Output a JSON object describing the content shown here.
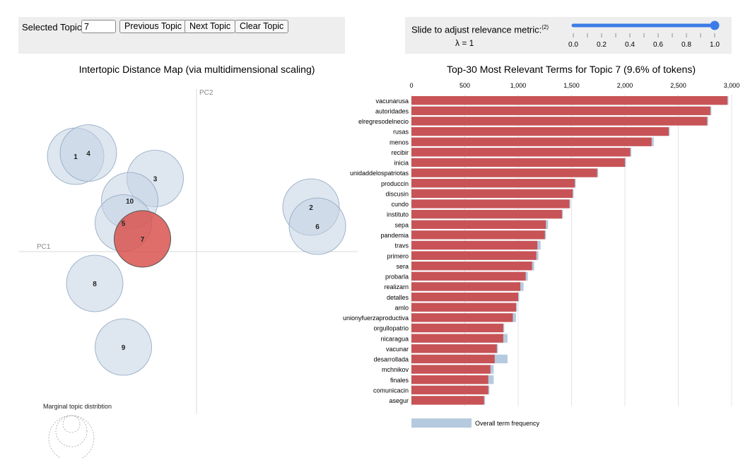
{
  "controls": {
    "selected_label": "Selected Topic:",
    "selected_value": "7",
    "prev_label": "Previous Topic",
    "next_label": "Next Topic",
    "clear_label": "Clear Topic",
    "relevance_label": "Slide to adjust relevance metric:",
    "relevance_sup": "(2)",
    "lambda_label": "λ = 1",
    "lambda_value": 1,
    "slider_ticks": [
      "0.0",
      "0.2",
      "0.4",
      "0.6",
      "0.8",
      "1.0"
    ],
    "slider_color": "#3d7ce6"
  },
  "chart_data": [
    {
      "type": "scatter",
      "title": "Intertopic Distance Map (via multidimensional scaling)",
      "xlabel": "PC1",
      "ylabel": "PC2",
      "colors": {
        "default": "#c3d2e3",
        "selected": "#d9534f"
      },
      "topics": [
        {
          "label": "1",
          "x": -0.38,
          "y": 0.3,
          "selected": false
        },
        {
          "label": "4",
          "x": -0.34,
          "y": 0.31,
          "selected": false
        },
        {
          "label": "3",
          "x": -0.13,
          "y": 0.23,
          "selected": false
        },
        {
          "label": "10",
          "x": -0.21,
          "y": 0.16,
          "selected": false
        },
        {
          "label": "5",
          "x": -0.23,
          "y": 0.09,
          "selected": false
        },
        {
          "label": "7",
          "x": -0.17,
          "y": 0.04,
          "selected": true
        },
        {
          "label": "2",
          "x": 0.36,
          "y": 0.14,
          "selected": false
        },
        {
          "label": "6",
          "x": 0.38,
          "y": 0.08,
          "selected": false
        },
        {
          "label": "8",
          "x": -0.32,
          "y": -0.1,
          "selected": false
        },
        {
          "label": "9",
          "x": -0.23,
          "y": -0.3,
          "selected": false
        }
      ],
      "legend_label": "Marginal topic distribtion"
    },
    {
      "type": "bar",
      "title": "Top-30 Most Relevant Terms for Topic 7 (9.6% of tokens)",
      "xlim": [
        0,
        3000
      ],
      "ticks": [
        "0",
        "500",
        "1,000",
        "1,500",
        "2,000",
        "2,500",
        "3,000"
      ],
      "tick_values": [
        0,
        500,
        1000,
        1500,
        2000,
        2500,
        3000
      ],
      "colors": {
        "overall": "#b5cadf",
        "topic": "#c85356"
      },
      "legend_label": "Overall term frequency",
      "categories": [
        "vacunarusa",
        "autoridades",
        "elregresodelnecio",
        "rusas",
        "menos",
        "recibir",
        "inicia",
        "unidaddelospatriotas",
        "produccin",
        "discusin",
        "cundo",
        "instituto",
        "sepa",
        "pandemia",
        "travs",
        "primero",
        "sera",
        "probarla",
        "realizarn",
        "detalles",
        "amlo",
        "unionyfuerzaproductiva",
        "orgullopatrio",
        "nicaragua",
        "vacunar",
        "desarrollada",
        "mchnikov",
        "finales",
        "comunicacin",
        "asegur"
      ],
      "series": [
        {
          "name": "Overall term frequency",
          "values": [
            2970,
            2810,
            2780,
            2420,
            2270,
            2060,
            2010,
            1750,
            1540,
            1520,
            1490,
            1420,
            1280,
            1260,
            1210,
            1190,
            1150,
            1090,
            1050,
            1010,
            990,
            980,
            870,
            900,
            810,
            900,
            770,
            770,
            730,
            690
          ]
        },
        {
          "name": "Topic 7",
          "values": [
            2960,
            2800,
            2770,
            2410,
            2250,
            2050,
            2000,
            1740,
            1530,
            1510,
            1480,
            1410,
            1260,
            1250,
            1180,
            1170,
            1130,
            1070,
            1020,
            1000,
            980,
            950,
            860,
            860,
            800,
            780,
            740,
            720,
            720,
            680
          ]
        }
      ]
    }
  ]
}
